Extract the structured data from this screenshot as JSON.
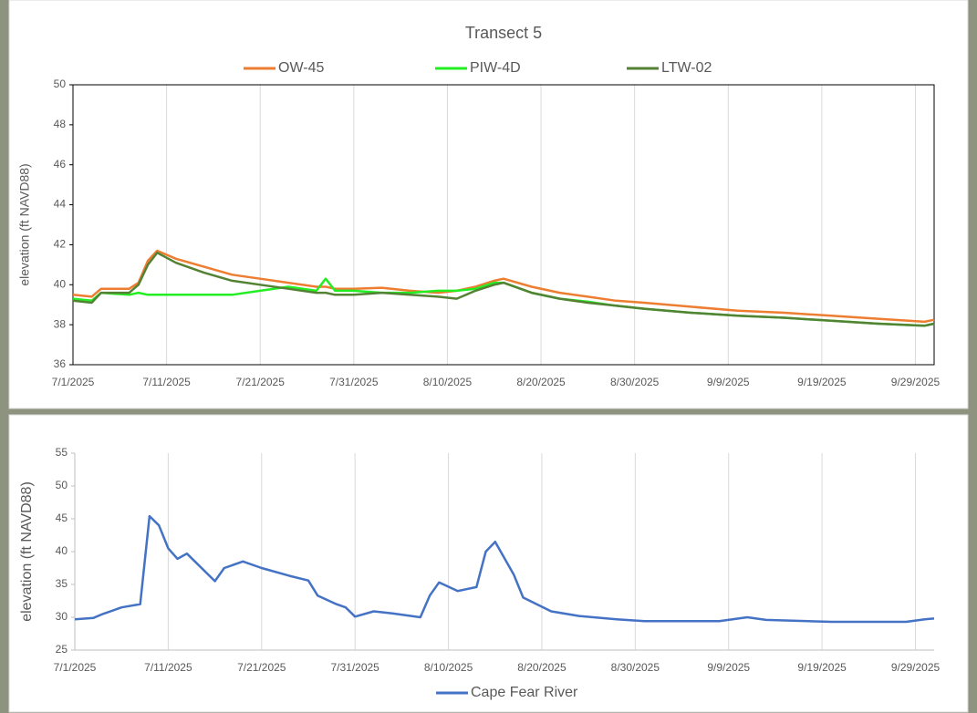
{
  "chart_data": [
    {
      "type": "line",
      "title": "Transect 5",
      "y_label": "elevation (ft NAVD88)",
      "x": [
        "7/1/2025",
        "7/3/2025",
        "7/4/2025",
        "7/7/2025",
        "7/8/2025",
        "7/9/2025",
        "7/10/2025",
        "7/12/2025",
        "7/15/2025",
        "7/18/2025",
        "7/21/2025",
        "7/24/2025",
        "7/27/2025",
        "7/28/2025",
        "7/29/2025",
        "7/31/2025",
        "8/3/2025",
        "8/6/2025",
        "8/9/2025",
        "8/11/2025",
        "8/13/2025",
        "8/15/2025",
        "8/16/2025",
        "8/19/2025",
        "8/22/2025",
        "8/25/2025",
        "8/28/2025",
        "8/31/2025",
        "9/5/2025",
        "9/10/2025",
        "9/15/2025",
        "9/20/2025",
        "9/25/2025",
        "9/30/2025",
        "10/1/2025"
      ],
      "series": [
        {
          "name": "OW-45",
          "color": "#ed7d31",
          "values": [
            39.5,
            39.4,
            39.8,
            39.8,
            40.1,
            41.2,
            41.7,
            41.3,
            40.9,
            40.5,
            40.3,
            40.1,
            39.9,
            39.9,
            39.8,
            39.8,
            39.85,
            39.7,
            39.6,
            39.7,
            39.9,
            40.2,
            40.3,
            39.9,
            39.6,
            39.4,
            39.2,
            39.1,
            38.9,
            38.7,
            38.6,
            38.45,
            38.3,
            38.15,
            38.25
          ]
        },
        {
          "name": "PIW-4D",
          "color": "#22ee22",
          "values": [
            39.3,
            39.2,
            39.6,
            39.5,
            39.6,
            39.5,
            39.5,
            39.5,
            39.5,
            39.5,
            39.7,
            39.9,
            39.7,
            40.3,
            39.7,
            39.7,
            39.6,
            39.6,
            39.7,
            39.7,
            39.8,
            40.1,
            40.1,
            39.6,
            39.3,
            39.15,
            38.95,
            38.8,
            38.6,
            38.45,
            38.35,
            38.2,
            38.05,
            37.95,
            38.05
          ]
        },
        {
          "name": "LTW-02",
          "color": "#548235",
          "values": [
            39.2,
            39.1,
            39.6,
            39.6,
            40.0,
            41.0,
            41.6,
            41.1,
            40.6,
            40.2,
            40.0,
            39.8,
            39.6,
            39.6,
            39.5,
            39.5,
            39.6,
            39.5,
            39.4,
            39.3,
            39.7,
            40.0,
            40.1,
            39.6,
            39.3,
            39.1,
            38.95,
            38.8,
            38.6,
            38.45,
            38.35,
            38.2,
            38.05,
            37.95,
            38.05
          ]
        }
      ],
      "xlim": [
        "7/1/2025",
        "10/1/2025"
      ],
      "xticks": [
        "7/1/2025",
        "7/11/2025",
        "7/21/2025",
        "7/31/2025",
        "8/10/2025",
        "8/20/2025",
        "8/30/2025",
        "9/9/2025",
        "9/19/2025",
        "9/29/2025"
      ],
      "ylim": [
        36,
        50
      ],
      "yticks": [
        36,
        38,
        40,
        42,
        44,
        46,
        48,
        50
      ],
      "grid": "x",
      "legend": "top"
    },
    {
      "type": "line",
      "y_label": "elevation (ft NAVD88)",
      "x": [
        "7/1/2025",
        "7/3/2025",
        "7/4/2025",
        "7/6/2025",
        "7/8/2025",
        "7/9/2025",
        "7/10/2025",
        "7/11/2025",
        "7/12/2025",
        "7/13/2025",
        "7/16/2025",
        "7/17/2025",
        "7/19/2025",
        "7/21/2025",
        "7/24/2025",
        "7/26/2025",
        "7/27/2025",
        "7/29/2025",
        "7/30/2025",
        "7/31/2025",
        "8/2/2025",
        "8/4/2025",
        "8/7/2025",
        "8/8/2025",
        "8/9/2025",
        "8/11/2025",
        "8/13/2025",
        "8/14/2025",
        "8/15/2025",
        "8/17/2025",
        "8/18/2025",
        "8/21/2025",
        "8/24/2025",
        "8/28/2025",
        "8/31/2025",
        "9/8/2025",
        "9/11/2025",
        "9/13/2025",
        "9/20/2025",
        "9/28/2025",
        "9/30/2025",
        "10/1/2025"
      ],
      "series": [
        {
          "name": "Cape Fear River",
          "color": "#4472c4",
          "values": [
            29.7,
            29.9,
            30.5,
            31.5,
            32.0,
            45.4,
            44,
            40.5,
            38.9,
            39.7,
            35.5,
            37.5,
            38.5,
            37.5,
            36.3,
            35.6,
            33.3,
            32.0,
            31.5,
            30.1,
            30.9,
            30.6,
            30.0,
            33.3,
            35.3,
            34.0,
            34.6,
            40.0,
            41.5,
            36.5,
            33.0,
            30.9,
            30.2,
            29.7,
            29.4,
            29.4,
            30.0,
            29.6,
            29.3,
            29.3,
            29.7,
            29.8
          ]
        }
      ],
      "xlim": [
        "7/1/2025",
        "10/1/2025"
      ],
      "xticks": [
        "7/1/2025",
        "7/11/2025",
        "7/21/2025",
        "7/31/2025",
        "8/10/2025",
        "8/20/2025",
        "8/30/2025",
        "9/9/2025",
        "9/19/2025",
        "9/29/2025"
      ],
      "ylim": [
        25,
        55
      ],
      "yticks": [
        25,
        30,
        35,
        40,
        45,
        50,
        55
      ],
      "grid": "x",
      "legend": "bottom"
    }
  ]
}
